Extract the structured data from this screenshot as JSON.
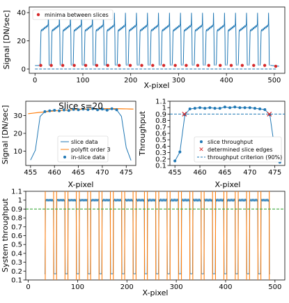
{
  "chart_data": [
    {
      "type": "line",
      "id": "p1",
      "xlabel": "X-pixel",
      "ylabel": "Signal [DN/sec]",
      "xlim": [
        -12,
        522
      ],
      "ylim": [
        -3,
        44
      ],
      "xticks": [
        0,
        100,
        200,
        300,
        400,
        500
      ],
      "yticks": [
        0,
        20,
        40
      ],
      "legend": [
        "minima between slices"
      ],
      "legend_position": "top-left",
      "grid": false,
      "series": [
        {
          "role": "signal",
          "slices": {
            "starts": [
              10,
              33,
              56,
              79,
              102,
              125,
              148,
              171,
              194,
              217,
              240,
              263,
              286,
              309,
              332,
              355,
              378,
              401,
              424,
              447,
              470
            ],
            "width": 20,
            "plateau_start": 27,
            "plateau_end": 31
          }
        },
        {
          "name": "minima between slices",
          "x": [
            12,
            34,
            58,
            82,
            106,
            129,
            152,
            176,
            199,
            223,
            246,
            269,
            293,
            316,
            340,
            363,
            387,
            410,
            433,
            457,
            480,
            503
          ],
          "y": [
            2.6,
            2.6,
            2.6,
            2.6,
            2.6,
            2.6,
            2.6,
            2.6,
            2.6,
            2.6,
            2.6,
            2.6,
            2.6,
            2.6,
            2.6,
            2.6,
            2.6,
            2.6,
            2.6,
            2.6,
            2.6,
            2.0
          ]
        },
        {
          "role": "baseline",
          "y": 0
        }
      ]
    },
    {
      "type": "line",
      "id": "p2",
      "title": "Slice s=20",
      "xlabel": "X-pixel",
      "ylabel": "Signal [DN/sec]",
      "xlim": [
        454,
        477
      ],
      "ylim": [
        2,
        38
      ],
      "xticks": [
        455,
        460,
        465,
        470,
        475
      ],
      "yticks": [
        10,
        20,
        30
      ],
      "legend": [
        "slice data",
        "polyfit order 3",
        "in-slice data"
      ],
      "legend_position": "lower-center",
      "series": [
        {
          "name": "slice data",
          "x": [
            455,
            456,
            457,
            458,
            459,
            460,
            461,
            462,
            463,
            464,
            465,
            466,
            467,
            468,
            469,
            470,
            471,
            472,
            473,
            474,
            475,
            476
          ],
          "y": [
            5,
            10.5,
            29.5,
            32.2,
            32.6,
            32.9,
            32.6,
            33.1,
            32.8,
            33.4,
            33.2,
            33.6,
            33.3,
            33.8,
            33.2,
            33.6,
            33.0,
            33.8,
            33.2,
            29.5,
            12,
            4.8
          ]
        },
        {
          "name": "polyfit order 3",
          "x": [
            454.5,
            476.5
          ],
          "y": [
            31.0,
            33.6
          ]
        },
        {
          "name": "in-slice data",
          "x": [
            458,
            459,
            460,
            461,
            462,
            463,
            464,
            465,
            466,
            467,
            468,
            469,
            470,
            471,
            472,
            473
          ],
          "y": [
            32.2,
            32.6,
            32.9,
            32.6,
            33.1,
            32.8,
            33.4,
            33.2,
            33.6,
            33.3,
            33.8,
            33.2,
            33.6,
            33.0,
            33.8,
            33.2
          ]
        }
      ]
    },
    {
      "type": "line",
      "id": "p3",
      "xlabel": "X-pixel",
      "ylabel": "Throughput",
      "xlim": [
        454,
        477
      ],
      "ylim": [
        0.1,
        1.1
      ],
      "xticks": [
        455,
        460,
        465,
        470,
        475
      ],
      "yticks": [
        0.1,
        0.2,
        0.3,
        0.4,
        0.5,
        0.6,
        0.7,
        0.8,
        0.9,
        1.0,
        1.1
      ],
      "legend": [
        "slice throughput",
        "determined slice edges",
        "throughput criterion (90%)"
      ],
      "legend_position": "lower-center",
      "series": [
        {
          "name": "slice throughput",
          "x": [
            455,
            456,
            457,
            458,
            459,
            460,
            461,
            462,
            463,
            464,
            465,
            466,
            467,
            468,
            469,
            470,
            471,
            472,
            473,
            474,
            475,
            476
          ],
          "y": [
            0.17,
            0.31,
            0.89,
            0.98,
            0.99,
            1.0,
            0.99,
            1.0,
            0.99,
            0.99,
            1.01,
            1.0,
            1.01,
            1.0,
            1.0,
            1.0,
            0.99,
            0.98,
            0.97,
            0.89,
            0.34,
            0.15
          ]
        },
        {
          "name": "determined slice edges",
          "x": [
            456.9,
            473.9
          ],
          "y": [
            0.9,
            0.9
          ]
        },
        {
          "name": "throughput criterion (90%)",
          "y": 0.9
        }
      ]
    },
    {
      "type": "line",
      "id": "p4",
      "xlabel": "X-pixel",
      "ylabel": "System throughput",
      "xlim": [
        -5,
        520
      ],
      "ylim": [
        0.1,
        1.1
      ],
      "xticks": [
        0,
        100,
        200,
        300,
        400,
        500
      ],
      "yticks": [
        0.1,
        0.2,
        0.3,
        0.4,
        0.5,
        0.6,
        0.7,
        0.8,
        0.9,
        1.0,
        1.1
      ],
      "series": [
        {
          "role": "throughput",
          "slices": {
            "starts": [
              33,
              56,
              79,
              102,
              125,
              148,
              171,
              194,
              217,
              240,
              263,
              286,
              309,
              332,
              355,
              378,
              401,
              424,
              447,
              470
            ],
            "width": 20,
            "plateau": 1.0,
            "dip": 0.17
          }
        },
        {
          "role": "edges",
          "x": [
            34.5,
            51.5,
            57.5,
            74.5,
            80.5,
            97.5,
            103.5,
            120.5,
            126.5,
            143.5,
            149.5,
            166.5,
            172.5,
            189.5,
            195.5,
            212.5,
            218.5,
            235.5,
            241.5,
            258.5,
            264.5,
            281.5,
            287.5,
            304.5,
            310.5,
            327.5,
            333.5,
            350.5,
            356.5,
            373.5,
            379.5,
            396.5,
            402.5,
            419.5,
            425.5,
            442.5,
            448.5,
            465.5,
            471.5,
            488.5
          ]
        },
        {
          "role": "criterion",
          "y": 0.9
        }
      ]
    }
  ],
  "colors": {
    "blue": "#1f77b4",
    "orange": "#ff7f0e",
    "red": "#d62728",
    "green": "#2ca02c"
  }
}
